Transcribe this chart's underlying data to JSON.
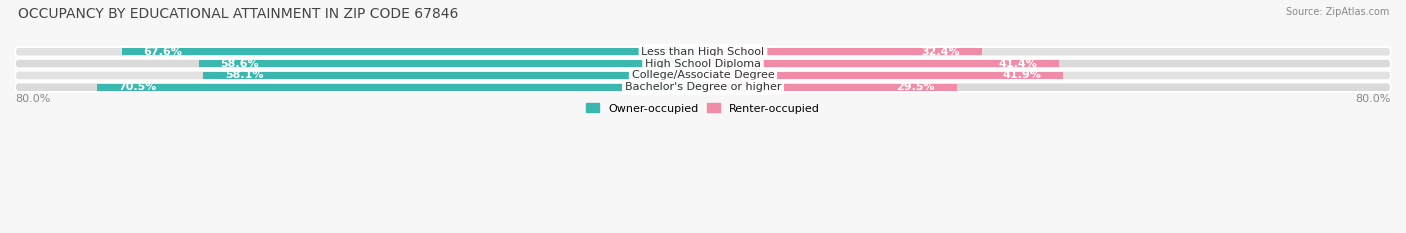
{
  "title": "OCCUPANCY BY EDUCATIONAL ATTAINMENT IN ZIP CODE 67846",
  "source": "Source: ZipAtlas.com",
  "categories": [
    "Less than High School",
    "High School Diploma",
    "College/Associate Degree",
    "Bachelor's Degree or higher"
  ],
  "owner_pct": [
    67.6,
    58.6,
    58.1,
    70.5
  ],
  "renter_pct": [
    32.4,
    41.4,
    41.9,
    29.5
  ],
  "owner_color": "#3ab8b0",
  "renter_color": "#f08ca8",
  "row_bg_color": "#e8e8e8",
  "row_bg_color2": "#dedede",
  "owner_label": "Owner-occupied",
  "renter_label": "Renter-occupied",
  "xlim_left": -80.0,
  "xlim_right": 80.0,
  "x_left_label": "80.0%",
  "x_right_label": "80.0%",
  "background_color": "#f7f7f7",
  "bar_height": 0.62,
  "title_fontsize": 10,
  "source_fontsize": 7,
  "label_fontsize": 8,
  "pct_fontsize": 8
}
